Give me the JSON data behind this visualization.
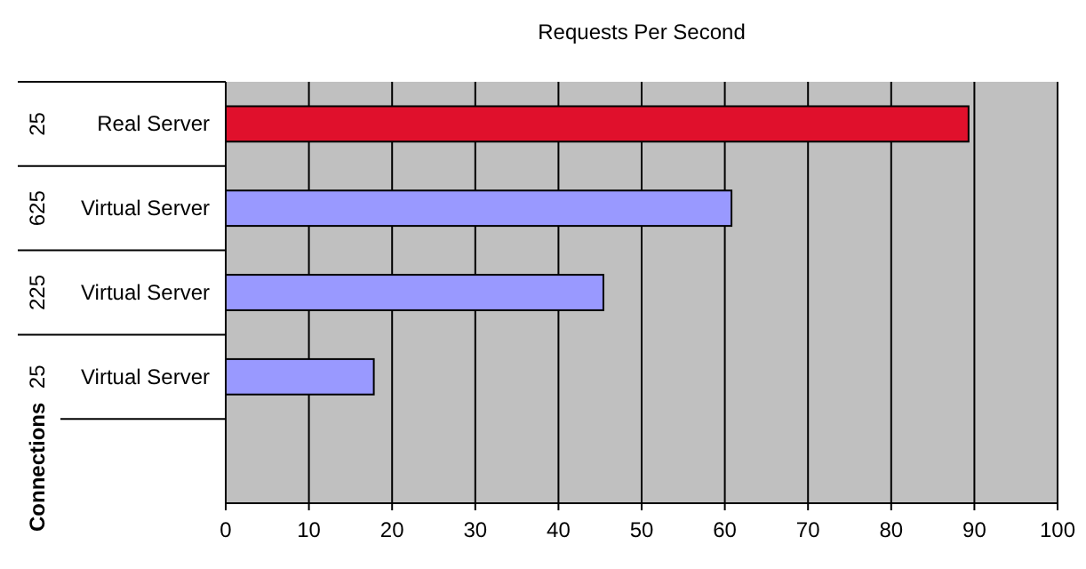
{
  "chart_data": {
    "type": "bar",
    "orientation": "horizontal",
    "title": "Requests Per Second",
    "categories": [
      "Real Server",
      "Virtual Server",
      "Virtual Server",
      "Virtual Server",
      null
    ],
    "values": [
      89.3,
      60.8,
      45.4,
      17.8,
      null
    ],
    "colors": [
      "#e0102c",
      "#9999ff",
      "#9999ff",
      "#9999ff",
      null
    ],
    "annotations": [
      "25",
      "625",
      "225",
      "25",
      "Connections"
    ],
    "xlim": [
      0,
      100
    ],
    "xticks": [
      0,
      10,
      20,
      30,
      40,
      50,
      60,
      70,
      80,
      90,
      100
    ],
    "grid": "x"
  }
}
